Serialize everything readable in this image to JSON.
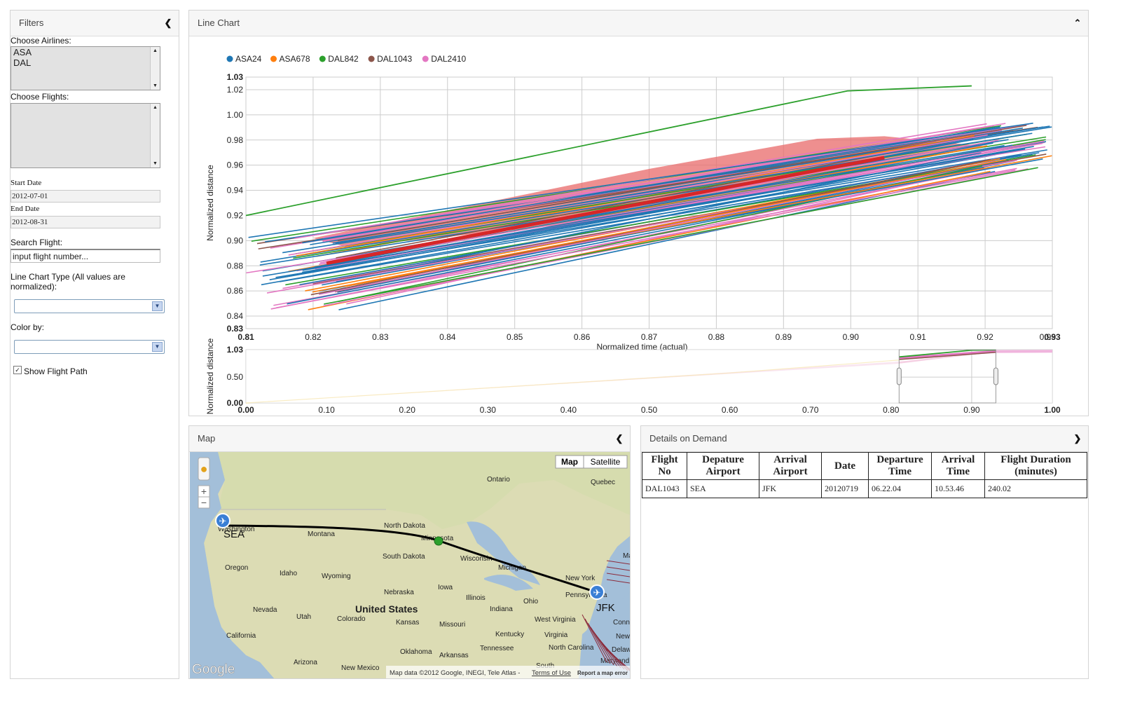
{
  "filters": {
    "title": "Filters",
    "airlines_label": "Choose Airlines:",
    "airlines": [
      "ASA",
      "DAL"
    ],
    "flights_label": "Choose Flights:",
    "start_date_label": "Start Date",
    "start_date": "2012-07-01",
    "end_date_label": "End Date",
    "end_date": "2012-08-31",
    "search_label": "Search Flight:",
    "search_placeholder": "input flight number...",
    "chart_type_label": "Line Chart Type (All values are normalized):",
    "color_by_label": "Color by:",
    "show_path_label": "Show Flight Path"
  },
  "linechart": {
    "title": "Line Chart",
    "chart_data": {
      "type": "line",
      "xlabel": "Normalized time (actual)",
      "ylabel": "Normalized distance",
      "xlim": [
        0.81,
        0.93
      ],
      "ylim": [
        0.83,
        1.03
      ],
      "xticks": [
        "0.81",
        "0.82",
        "0.83",
        "0.84",
        "0.85",
        "0.86",
        "0.87",
        "0.88",
        "0.89",
        "0.90",
        "0.91",
        "0.92",
        "0.93",
        "0.93"
      ],
      "yticks": [
        "0.83",
        "0.84",
        "0.86",
        "0.88",
        "0.90",
        "0.92",
        "0.94",
        "0.96",
        "0.98",
        "1.00",
        "1.02",
        "1.03"
      ],
      "grid": true,
      "legend_position": "top-left",
      "series": [
        {
          "name": "ASA24",
          "color": "#1f77b4"
        },
        {
          "name": "ASA678",
          "color": "#ff7f0e"
        },
        {
          "name": "DAL842",
          "color": "#2ca02c"
        },
        {
          "name": "DAL1043",
          "color": "#8c564b"
        },
        {
          "name": "DAL2410",
          "color": "#e377c2"
        }
      ],
      "highlight_series": [
        {
          "color": "#2ca02c",
          "x": [
            0.81,
            0.8995,
            0.918
          ],
          "y": [
            0.92,
            1.019,
            1.023
          ]
        }
      ],
      "overview": {
        "ylabel": "Normalized distance",
        "xlim": [
          0.0,
          1.0
        ],
        "ylim": [
          0.0,
          1.03
        ],
        "xticks": [
          "0.00",
          "0.10",
          "0.20",
          "0.30",
          "0.40",
          "0.50",
          "0.60",
          "0.70",
          "0.80",
          "0.90",
          "1.00"
        ],
        "yticks": [
          "0.00",
          "0.50",
          "1.03"
        ],
        "brush": [
          0.81,
          0.93
        ]
      }
    }
  },
  "map": {
    "title": "Map",
    "map_button": "Map",
    "satellite_button": "Satellite",
    "zoom_in": "+",
    "zoom_out": "−",
    "origin": "SEA",
    "destination": "JFK",
    "labels": [
      "Ontario",
      "Quebec",
      "Washington",
      "Montana",
      "North Dakota",
      "Minnesota",
      "Oregon",
      "Idaho",
      "South Dakota",
      "Wyoming",
      "Wisconsin",
      "Michigan",
      "New York",
      "Nebraska",
      "Iowa",
      "Illinois",
      "Pennsylvania",
      "Nevada",
      "Utah",
      "United States",
      "Colorado",
      "Kansas",
      "Missouri",
      "Indiana",
      "Ohio",
      "West Virginia",
      "Kentucky",
      "Virginia",
      "California",
      "Tennessee",
      "North Carolina",
      "Oklahoma",
      "Arkansas",
      "Arizona",
      "New Mexico",
      "South",
      "Maryland",
      "Delaw",
      "New",
      "Conn",
      "Ma"
    ],
    "attribution": "Map data ©2012 Google, INEGI, Tele Atlas -",
    "terms": "Terms of Use",
    "report": "Report a map error",
    "logo": "Google"
  },
  "details": {
    "title": "Details on Demand",
    "headers": [
      "Flight No",
      "Depature Airport",
      "Arrival Airport",
      "Date",
      "Departure Time",
      "Arrival Time",
      "Flight Duration (minutes)"
    ],
    "rows": [
      [
        "DAL1043",
        "SEA",
        "JFK",
        "20120719",
        "06.22.04",
        "10.53.46",
        "240.02"
      ]
    ]
  },
  "colors": {
    "asa24": "#1f77b4",
    "asa678": "#ff7f0e",
    "dal842": "#2ca02c",
    "dal1043": "#8c564b",
    "dal2410": "#e377c2",
    "highlight": "#d62728"
  }
}
